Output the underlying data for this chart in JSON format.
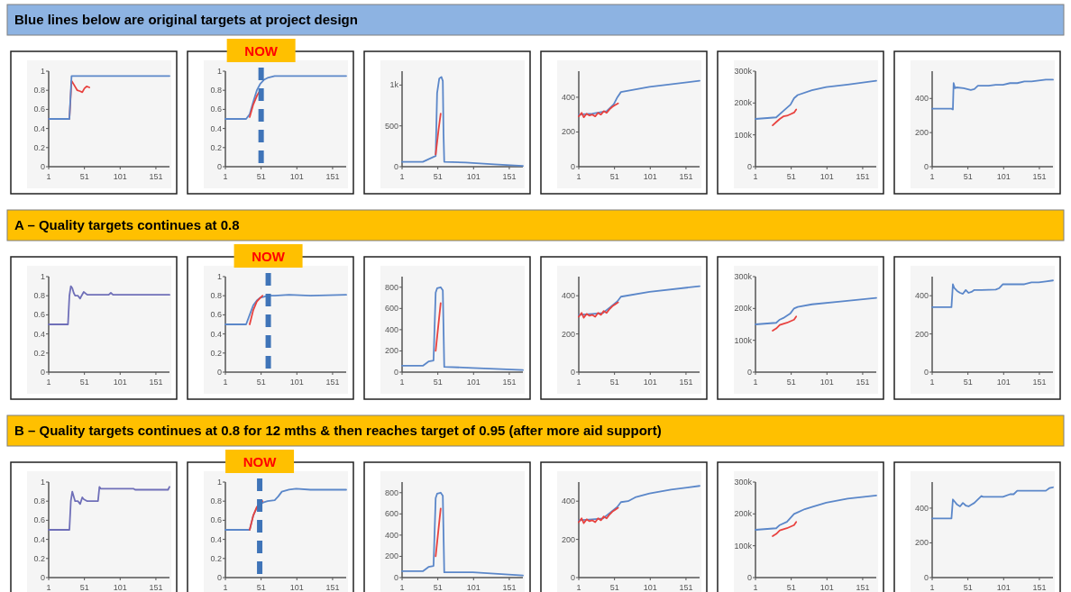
{
  "chart_data": [
    {
      "type": "other",
      "title": "Blue lines below  are original targets at project design"
    },
    {
      "type": "line",
      "xlim": [
        1,
        170
      ],
      "xticks": [
        1,
        51,
        101,
        151
      ],
      "ylim": [
        0,
        1
      ],
      "yticks": [
        0,
        0.2,
        0.4,
        0.6,
        0.8,
        1
      ],
      "series": [
        {
          "color": "#e8423f",
          "x": [
            1,
            30,
            33,
            37,
            41,
            45,
            48,
            51,
            54,
            58
          ],
          "values": [
            0.5,
            0.5,
            0.9,
            0.85,
            0.8,
            0.79,
            0.78,
            0.82,
            0.84,
            0.83
          ]
        },
        {
          "color": "#5b87c9",
          "x": [
            1,
            30,
            33,
            170
          ],
          "values": [
            0.5,
            0.5,
            0.95,
            0.95
          ]
        }
      ]
    },
    {
      "type": "line",
      "xlim": [
        1,
        170
      ],
      "xticks": [
        1,
        51,
        101,
        151
      ],
      "ylim": [
        0,
        1
      ],
      "yticks": [
        0,
        0.2,
        0.4,
        0.6,
        0.8,
        1
      ],
      "ref_lines": [
        {
          "axis": "x",
          "value": 51,
          "label": "NOW",
          "color": "#3f74b8",
          "line_style": "dashed"
        }
      ],
      "series": [
        {
          "color": "#5b87c9",
          "x": [
            1,
            30,
            35,
            40,
            45,
            50,
            55,
            60,
            70,
            80,
            100,
            170
          ],
          "values": [
            0.5,
            0.5,
            0.55,
            0.68,
            0.8,
            0.87,
            0.91,
            0.93,
            0.95,
            0.95,
            0.95,
            0.95
          ]
        },
        {
          "color": "#e8423f",
          "x": [
            35,
            40,
            45,
            48
          ],
          "values": [
            0.52,
            0.65,
            0.74,
            0.78
          ]
        }
      ]
    },
    {
      "type": "line",
      "xlim": [
        1,
        170
      ],
      "xticks": [
        1,
        51,
        101,
        151
      ],
      "ylim": [
        0,
        1170
      ],
      "yticks": [
        0,
        500,
        {
          "value": 1000,
          "label": "1k"
        }
      ],
      "series": [
        {
          "color": "#5b87c9",
          "x": [
            1,
            30,
            45,
            48,
            50,
            53,
            56,
            58,
            59,
            60,
            90,
            130,
            170
          ],
          "values": [
            60,
            60,
            120,
            130,
            900,
            1080,
            1100,
            1050,
            400,
            60,
            50,
            30,
            10
          ]
        },
        {
          "color": "#e8423f",
          "x": [
            48,
            52,
            55
          ],
          "values": [
            150,
            450,
            650
          ]
        }
      ]
    },
    {
      "type": "line",
      "xlim": [
        1,
        170
      ],
      "xticks": [
        1,
        51,
        101,
        151
      ],
      "ylim": [
        0,
        550
      ],
      "yticks": [
        0,
        200,
        400
      ],
      "series": [
        {
          "color": "#5b87c9",
          "x": [
            1,
            20,
            40,
            50,
            55,
            60,
            100,
            170
          ],
          "values": [
            300,
            305,
            320,
            360,
            400,
            430,
            460,
            495
          ]
        },
        {
          "color": "#e8423f",
          "x": [
            1,
            5,
            8,
            12,
            16,
            20,
            24,
            28,
            32,
            36,
            40,
            44,
            48,
            52,
            56
          ],
          "values": [
            290,
            310,
            285,
            305,
            295,
            300,
            290,
            310,
            300,
            320,
            310,
            330,
            345,
            355,
            365
          ]
        }
      ]
    },
    {
      "type": "line",
      "xlim": [
        1,
        170
      ],
      "xticks": [
        1,
        51,
        101,
        151
      ],
      "ylim": [
        0,
        300000
      ],
      "yticks": [
        0,
        {
          "value": 100000,
          "label": "100k"
        },
        {
          "value": 200000,
          "label": "200k"
        },
        {
          "value": 300000,
          "label": "300k"
        }
      ],
      "series": [
        {
          "color": "#5b87c9",
          "x": [
            1,
            30,
            40,
            50,
            55,
            60,
            80,
            100,
            130,
            170
          ],
          "values": [
            150000,
            155000,
            175000,
            195000,
            215000,
            225000,
            240000,
            250000,
            258000,
            270000
          ]
        },
        {
          "color": "#e8423f",
          "x": [
            25,
            30,
            35,
            40,
            45,
            50,
            55,
            58
          ],
          "values": [
            130000,
            140000,
            150000,
            158000,
            160000,
            165000,
            170000,
            180000
          ]
        }
      ]
    },
    {
      "type": "line",
      "xlim": [
        1,
        170
      ],
      "xticks": [
        1,
        51,
        101,
        151
      ],
      "ylim": [
        0,
        560
      ],
      "yticks": [
        0,
        200,
        400
      ],
      "series": [
        {
          "color": "#5b87c9",
          "x": [
            1,
            28,
            30,
            31,
            33,
            35,
            45,
            55,
            60,
            65,
            80,
            90,
            100,
            110,
            120,
            130,
            140,
            150,
            160,
            170
          ],
          "values": [
            340,
            340,
            335,
            490,
            460,
            465,
            460,
            450,
            455,
            475,
            475,
            480,
            480,
            490,
            490,
            500,
            500,
            505,
            510,
            510
          ]
        }
      ]
    },
    {
      "type": "other",
      "title": "A – Quality targets continues at 0.8"
    },
    {
      "type": "line",
      "xlim": [
        1,
        170
      ],
      "xticks": [
        1,
        51,
        101,
        151
      ],
      "ylim": [
        0,
        1
      ],
      "yticks": [
        0,
        0.2,
        0.4,
        0.6,
        0.8,
        1
      ],
      "series": [
        {
          "color": "#6f6fb8",
          "x": [
            1,
            28,
            30,
            32,
            34,
            36,
            38,
            42,
            45,
            47,
            50,
            55,
            60,
            85,
            88,
            91,
            100,
            170
          ],
          "values": [
            0.5,
            0.5,
            0.8,
            0.9,
            0.88,
            0.83,
            0.8,
            0.8,
            0.77,
            0.8,
            0.84,
            0.81,
            0.81,
            0.81,
            0.83,
            0.81,
            0.81,
            0.81
          ]
        }
      ]
    },
    {
      "type": "line",
      "xlim": [
        1,
        170
      ],
      "xticks": [
        1,
        51,
        101,
        151
      ],
      "ylim": [
        0,
        1
      ],
      "yticks": [
        0,
        0.2,
        0.4,
        0.6,
        0.8,
        1
      ],
      "ref_lines": [
        {
          "axis": "x",
          "value": 61,
          "label": "NOW",
          "color": "#3f74b8",
          "line_style": "dashed"
        }
      ],
      "series": [
        {
          "color": "#5b87c9",
          "x": [
            1,
            30,
            35,
            40,
            45,
            50,
            55,
            60,
            70,
            90,
            120,
            170
          ],
          "values": [
            0.5,
            0.5,
            0.6,
            0.7,
            0.75,
            0.78,
            0.79,
            0.8,
            0.8,
            0.81,
            0.8,
            0.81
          ]
        },
        {
          "color": "#e8423f",
          "x": [
            35,
            40,
            45,
            50,
            53
          ],
          "values": [
            0.5,
            0.65,
            0.74,
            0.78,
            0.8
          ]
        }
      ]
    },
    {
      "type": "line",
      "xlim": [
        1,
        170
      ],
      "xticks": [
        1,
        51,
        101,
        151
      ],
      "ylim": [
        0,
        900
      ],
      "yticks": [
        0,
        200,
        400,
        600,
        800
      ],
      "series": [
        {
          "color": "#5b87c9",
          "x": [
            1,
            30,
            38,
            45,
            48,
            50,
            55,
            58,
            60,
            100,
            170
          ],
          "values": [
            60,
            60,
            100,
            110,
            750,
            790,
            800,
            770,
            50,
            40,
            20
          ]
        },
        {
          "color": "#e8423f",
          "x": [
            48,
            55
          ],
          "values": [
            200,
            650
          ]
        }
      ]
    },
    {
      "type": "line",
      "xlim": [
        1,
        170
      ],
      "xticks": [
        1,
        51,
        101,
        151
      ],
      "ylim": [
        0,
        500
      ],
      "yticks": [
        0,
        200,
        400
      ],
      "series": [
        {
          "color": "#5b87c9",
          "x": [
            1,
            20,
            35,
            45,
            55,
            60,
            100,
            170
          ],
          "values": [
            300,
            305,
            310,
            340,
            370,
            395,
            420,
            450
          ]
        },
        {
          "color": "#e8423f",
          "x": [
            1,
            5,
            8,
            12,
            16,
            20,
            24,
            28,
            32,
            36,
            40,
            44,
            48,
            52,
            56
          ],
          "values": [
            290,
            310,
            285,
            305,
            295,
            300,
            290,
            310,
            300,
            320,
            310,
            330,
            345,
            355,
            365
          ]
        }
      ]
    },
    {
      "type": "line",
      "xlim": [
        1,
        170
      ],
      "xticks": [
        1,
        51,
        101,
        151
      ],
      "ylim": [
        0,
        300000
      ],
      "yticks": [
        0,
        {
          "value": 100000,
          "label": "100k"
        },
        {
          "value": 200000,
          "label": "200k"
        },
        {
          "value": 300000,
          "label": "300k"
        }
      ],
      "series": [
        {
          "color": "#5b87c9",
          "x": [
            1,
            30,
            35,
            40,
            50,
            55,
            60,
            80,
            120,
            170
          ],
          "values": [
            150000,
            155000,
            165000,
            170000,
            185000,
            200000,
            205000,
            213000,
            222000,
            233000
          ]
        },
        {
          "color": "#e8423f",
          "x": [
            25,
            30,
            35,
            40,
            45,
            50,
            55,
            58
          ],
          "values": [
            130000,
            137000,
            148000,
            152000,
            155000,
            160000,
            165000,
            175000
          ]
        }
      ]
    },
    {
      "type": "line",
      "xlim": [
        1,
        170
      ],
      "xticks": [
        1,
        51,
        101,
        151
      ],
      "ylim": [
        0,
        500
      ],
      "yticks": [
        0,
        200,
        400
      ],
      "series": [
        {
          "color": "#5b87c9",
          "x": [
            1,
            28,
            30,
            32,
            36,
            40,
            44,
            48,
            52,
            56,
            60,
            70,
            90,
            95,
            100,
            110,
            130,
            140,
            150,
            160,
            170
          ],
          "values": [
            340,
            340,
            460,
            440,
            425,
            415,
            410,
            430,
            415,
            420,
            430,
            430,
            432,
            440,
            460,
            460,
            460,
            470,
            470,
            475,
            480
          ]
        }
      ]
    },
    {
      "type": "other",
      "title": "B – Quality targets continues at 0.8 for 12 mths & then reaches target of 0.95 (after more aid support)"
    },
    {
      "type": "line",
      "xlim": [
        1,
        170
      ],
      "xticks": [
        1,
        51,
        101,
        151
      ],
      "ylim": [
        0,
        1
      ],
      "yticks": [
        0,
        0.2,
        0.4,
        0.6,
        0.8,
        1
      ],
      "series": [
        {
          "color": "#6f6fb8",
          "x": [
            1,
            30,
            32,
            34,
            36,
            38,
            42,
            45,
            48,
            50,
            55,
            60,
            70,
            72,
            74,
            100,
            120,
            122,
            168,
            170
          ],
          "values": [
            0.5,
            0.5,
            0.8,
            0.9,
            0.85,
            0.8,
            0.8,
            0.77,
            0.84,
            0.82,
            0.8,
            0.8,
            0.8,
            0.95,
            0.93,
            0.93,
            0.93,
            0.92,
            0.92,
            0.95
          ]
        }
      ]
    },
    {
      "type": "line",
      "xlim": [
        1,
        170
      ],
      "xticks": [
        1,
        51,
        101,
        151
      ],
      "ylim": [
        0,
        1
      ],
      "yticks": [
        0,
        0.2,
        0.4,
        0.6,
        0.8,
        1
      ],
      "ref_lines": [
        {
          "axis": "x",
          "value": 49,
          "label": "NOW",
          "color": "#3f74b8",
          "line_style": "dashed"
        }
      ],
      "series": [
        {
          "color": "#5b87c9",
          "x": [
            1,
            35,
            40,
            45,
            50,
            55,
            60,
            70,
            75,
            80,
            90,
            100,
            120,
            170
          ],
          "values": [
            0.5,
            0.5,
            0.65,
            0.73,
            0.77,
            0.79,
            0.8,
            0.81,
            0.85,
            0.9,
            0.92,
            0.93,
            0.92,
            0.92
          ]
        },
        {
          "color": "#e8423f",
          "x": [
            35,
            40,
            45,
            50,
            53
          ],
          "values": [
            0.5,
            0.65,
            0.74,
            0.78,
            0.8
          ]
        }
      ]
    },
    {
      "type": "line",
      "xlim": [
        1,
        170
      ],
      "xticks": [
        1,
        51,
        101,
        151
      ],
      "ylim": [
        0,
        900
      ],
      "yticks": [
        0,
        200,
        400,
        600,
        800
      ],
      "series": [
        {
          "color": "#5b87c9",
          "x": [
            1,
            30,
            38,
            45,
            48,
            50,
            55,
            58,
            60,
            100,
            170
          ],
          "values": [
            60,
            60,
            100,
            110,
            750,
            790,
            800,
            770,
            50,
            50,
            20
          ]
        },
        {
          "color": "#e8423f",
          "x": [
            48,
            55
          ],
          "values": [
            200,
            650
          ]
        }
      ]
    },
    {
      "type": "line",
      "xlim": [
        1,
        170
      ],
      "xticks": [
        1,
        51,
        101,
        151
      ],
      "ylim": [
        0,
        500
      ],
      "yticks": [
        0,
        200,
        400
      ],
      "series": [
        {
          "color": "#5b87c9",
          "x": [
            1,
            20,
            35,
            45,
            55,
            60,
            70,
            80,
            100,
            130,
            170
          ],
          "values": [
            300,
            305,
            310,
            340,
            370,
            395,
            400,
            420,
            440,
            460,
            480
          ]
        },
        {
          "color": "#e8423f",
          "x": [
            1,
            5,
            8,
            12,
            16,
            20,
            24,
            28,
            32,
            36,
            40,
            44,
            48,
            52,
            56
          ],
          "values": [
            290,
            310,
            285,
            305,
            295,
            300,
            290,
            310,
            300,
            320,
            310,
            330,
            345,
            355,
            365
          ]
        }
      ]
    },
    {
      "type": "line",
      "xlim": [
        1,
        170
      ],
      "xticks": [
        1,
        51,
        101,
        151
      ],
      "ylim": [
        0,
        300000
      ],
      "yticks": [
        0,
        {
          "value": 100000,
          "label": "100k"
        },
        {
          "value": 200000,
          "label": "200k"
        },
        {
          "value": 300000,
          "label": "300k"
        }
      ],
      "series": [
        {
          "color": "#5b87c9",
          "x": [
            1,
            30,
            35,
            45,
            55,
            60,
            70,
            80,
            100,
            130,
            170
          ],
          "values": [
            150000,
            155000,
            165000,
            175000,
            200000,
            205000,
            215000,
            222000,
            235000,
            248000,
            258000
          ]
        },
        {
          "color": "#e8423f",
          "x": [
            25,
            30,
            35,
            40,
            45,
            50,
            55,
            58
          ],
          "values": [
            130000,
            137000,
            148000,
            152000,
            155000,
            160000,
            165000,
            175000
          ]
        }
      ]
    },
    {
      "type": "line",
      "xlim": [
        1,
        170
      ],
      "xticks": [
        1,
        51,
        101,
        151
      ],
      "ylim": [
        0,
        550
      ],
      "yticks": [
        0,
        200,
        400
      ],
      "series": [
        {
          "color": "#5b87c9",
          "x": [
            1,
            28,
            30,
            32,
            36,
            40,
            44,
            48,
            52,
            56,
            60,
            70,
            72,
            90,
            100,
            110,
            115,
            120,
            140,
            150,
            160,
            165,
            170
          ],
          "values": [
            340,
            340,
            450,
            440,
            420,
            410,
            430,
            415,
            410,
            420,
            430,
            470,
            465,
            465,
            465,
            480,
            480,
            500,
            500,
            500,
            500,
            515,
            520
          ]
        }
      ]
    }
  ]
}
